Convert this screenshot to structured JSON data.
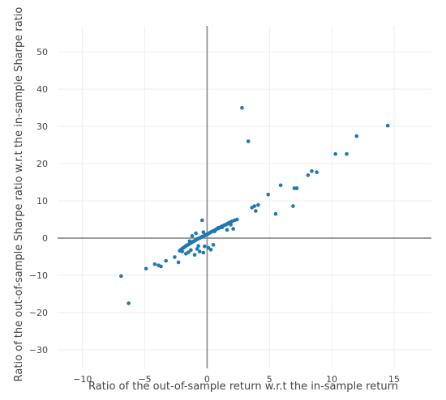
{
  "chart_data": {
    "type": "scatter",
    "xlabel": "Ratio of the out-of-sample return w.r.t the in-sample return",
    "ylabel": "Ratio of the out-of-sample Sharpe ratio w.r.t the in-sample Sharpe ratio",
    "xlim": [
      -12,
      18
    ],
    "ylim": [
      -35,
      57
    ],
    "xticks": [
      "−10",
      "−5",
      "0",
      "5",
      "10",
      "15"
    ],
    "xtick_values": [
      -10,
      -5,
      0,
      5,
      10,
      15
    ],
    "yticks": [
      "−30",
      "−20",
      "−10",
      "0",
      "10",
      "20",
      "30",
      "40",
      "50"
    ],
    "ytick_values": [
      -30,
      -20,
      -10,
      0,
      10,
      20,
      30,
      40,
      50
    ],
    "grid": true,
    "point_color": "#1f77b4",
    "x": [
      -6.9,
      -6.3,
      -4.9,
      -4.2,
      -3.9,
      -3.7,
      -3.3,
      -2.6,
      -2.3,
      -2.2,
      -2.1,
      -2.0,
      -1.9,
      -1.8,
      -1.7,
      -1.6,
      -1.5,
      -1.4,
      -1.3,
      -1.2,
      -1.1,
      -1.0,
      -0.9,
      -0.8,
      -0.7,
      -0.6,
      -0.5,
      -0.4,
      -0.3,
      -0.2,
      -0.1,
      0.0,
      0.1,
      0.2,
      0.3,
      0.4,
      0.5,
      0.6,
      0.7,
      0.8,
      0.9,
      1.0,
      1.1,
      1.2,
      1.3,
      1.4,
      1.5,
      1.6,
      1.7,
      1.8,
      1.9,
      2.0,
      2.2,
      2.4,
      -1.7,
      -1.5,
      -1.3,
      -1.0,
      -0.8,
      -0.6,
      -0.3,
      -0.2,
      0.1,
      0.3,
      0.5,
      -1.2,
      -0.9,
      -1.4,
      -0.4,
      0.6,
      0.9,
      1.2,
      1.6,
      1.9,
      2.1,
      -2.0,
      -0.7,
      -0.3,
      2.8,
      3.3,
      3.6,
      3.8,
      3.9,
      4.1,
      4.9,
      5.5,
      5.9,
      6.9,
      7.0,
      7.2,
      8.1,
      8.4,
      8.8,
      10.3,
      11.2,
      12.0,
      14.5
    ],
    "y": [
      -10.2,
      -17.5,
      -8.2,
      -7.0,
      -7.3,
      -7.6,
      -6.1,
      -5.1,
      -6.5,
      -3.4,
      -3.1,
      -2.8,
      -2.6,
      -2.4,
      -2.1,
      -1.9,
      -1.7,
      -1.5,
      -1.3,
      -1.1,
      -0.9,
      -0.7,
      -0.5,
      -0.3,
      -0.1,
      0.0,
      0.2,
      0.4,
      0.5,
      0.7,
      0.9,
      1.0,
      1.2,
      1.4,
      1.6,
      1.8,
      1.9,
      2.1,
      2.3,
      2.5,
      2.6,
      2.8,
      3.0,
      3.2,
      3.3,
      3.5,
      3.6,
      3.8,
      4.0,
      4.2,
      4.3,
      4.5,
      4.8,
      5.0,
      -4.2,
      -3.8,
      -3.2,
      -4.5,
      -2.9,
      -3.6,
      -3.9,
      -2.2,
      -2.6,
      -3.1,
      -1.8,
      0.6,
      1.3,
      -0.8,
      4.8,
      1.8,
      2.8,
      2.9,
      2.2,
      3.6,
      2.5,
      -3.6,
      -2.1,
      1.6,
      35.0,
      26.0,
      8.2,
      8.6,
      7.3,
      8.9,
      11.7,
      6.5,
      14.2,
      8.6,
      13.4,
      13.4,
      16.9,
      18.0,
      17.7,
      22.6,
      22.6,
      27.4,
      30.2
    ]
  }
}
